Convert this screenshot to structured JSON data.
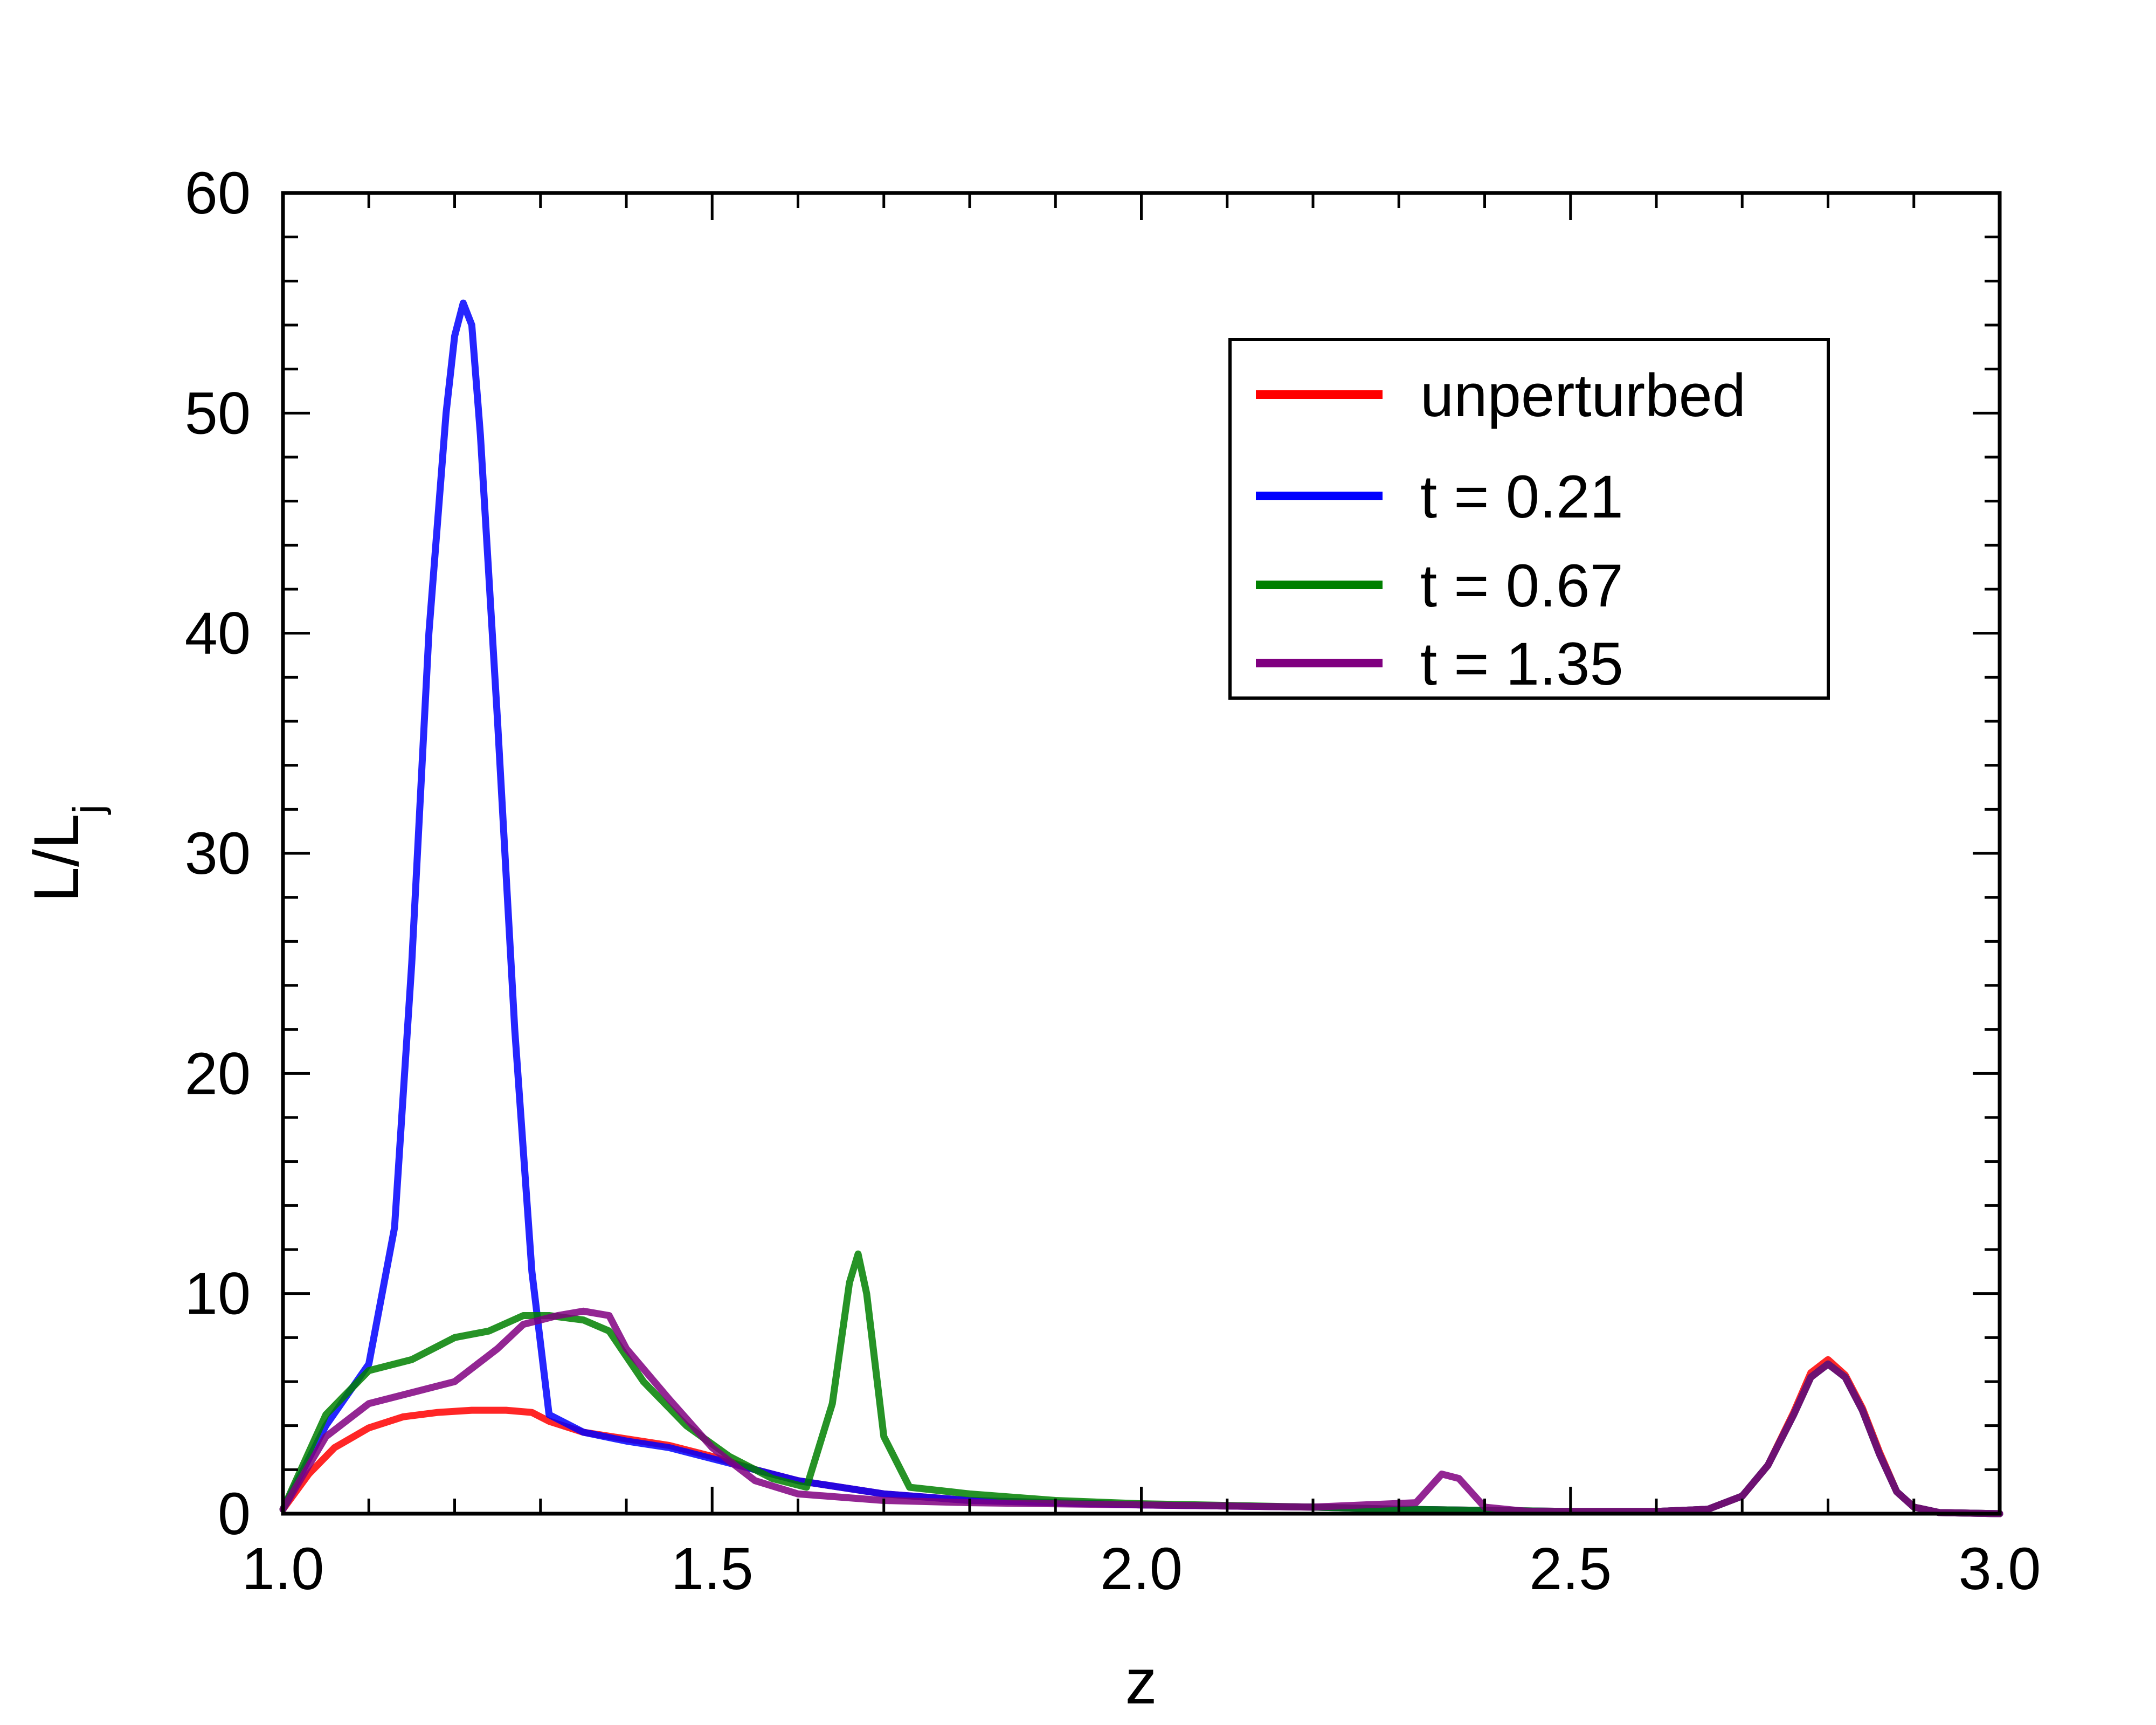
{
  "chart_data": {
    "type": "line",
    "title": "",
    "xlabel": "z",
    "ylabel": "L/L",
    "ylabel_subscript": "j",
    "xlim": [
      1.0,
      3.0
    ],
    "ylim": [
      0,
      60
    ],
    "xticks": [
      1.0,
      1.5,
      2.0,
      2.5,
      3.0
    ],
    "xtick_labels": [
      "1.0",
      "1.5",
      "2.0",
      "2.5",
      "3.0"
    ],
    "yticks": [
      0,
      10,
      20,
      30,
      40,
      50,
      60
    ],
    "ytick_labels": [
      "0",
      "10",
      "20",
      "30",
      "40",
      "50",
      "60"
    ],
    "grid": false,
    "legend_position": "top-right",
    "series": [
      {
        "name": "unperturbed",
        "color": "#ff0000",
        "x": [
          1.0,
          1.03,
          1.06,
          1.1,
          1.14,
          1.18,
          1.22,
          1.26,
          1.29,
          1.31,
          1.35,
          1.4,
          1.45,
          1.5,
          1.55,
          1.6,
          1.7,
          1.8,
          2.0,
          2.2,
          2.3,
          2.4,
          2.5,
          2.6,
          2.66,
          2.7,
          2.73,
          2.76,
          2.78,
          2.8,
          2.82,
          2.84,
          2.86,
          2.88,
          2.9,
          2.93,
          3.0
        ],
        "y": [
          0.2,
          1.8,
          3.0,
          3.9,
          4.4,
          4.6,
          4.7,
          4.7,
          4.6,
          4.2,
          3.7,
          3.4,
          3.1,
          2.6,
          2.0,
          1.5,
          0.9,
          0.6,
          0.4,
          0.3,
          0.2,
          0.15,
          0.1,
          0.1,
          0.2,
          0.8,
          2.2,
          4.6,
          6.4,
          7.0,
          6.3,
          4.8,
          2.8,
          1.0,
          0.3,
          0.05,
          0.0
        ]
      },
      {
        "name": "t = 0.21",
        "color": "#0000ff",
        "x": [
          1.0,
          1.05,
          1.1,
          1.13,
          1.15,
          1.17,
          1.19,
          1.2,
          1.21,
          1.22,
          1.23,
          1.25,
          1.27,
          1.29,
          1.31,
          1.35,
          1.4,
          1.45,
          1.5,
          1.55,
          1.6,
          1.7,
          1.8,
          2.0,
          2.2,
          2.3,
          2.4,
          2.5,
          2.6,
          2.66,
          2.7,
          2.73,
          2.76,
          2.78,
          2.8,
          2.82,
          2.84,
          2.86,
          2.88,
          2.9,
          2.93,
          3.0
        ],
        "y": [
          0.2,
          4.0,
          6.8,
          13,
          25,
          40,
          50,
          53.5,
          55,
          54,
          49,
          36,
          22,
          11,
          4.5,
          3.7,
          3.3,
          3.0,
          2.5,
          2.0,
          1.5,
          0.9,
          0.6,
          0.4,
          0.3,
          0.2,
          0.15,
          0.1,
          0.1,
          0.2,
          0.8,
          2.2,
          4.5,
          6.2,
          6.8,
          6.2,
          4.7,
          2.7,
          1.0,
          0.3,
          0.05,
          0.0
        ]
      },
      {
        "name": "t = 0.67",
        "color": "#008000",
        "x": [
          1.0,
          1.05,
          1.1,
          1.15,
          1.2,
          1.24,
          1.28,
          1.31,
          1.35,
          1.38,
          1.42,
          1.47,
          1.52,
          1.57,
          1.61,
          1.64,
          1.66,
          1.67,
          1.68,
          1.7,
          1.73,
          1.8,
          1.9,
          2.0,
          2.2,
          2.3,
          2.4,
          2.5,
          2.6,
          2.66,
          2.7,
          2.73,
          2.76,
          2.78,
          2.8,
          2.82,
          2.84,
          2.86,
          2.88,
          2.9,
          2.93,
          3.0
        ],
        "y": [
          0.2,
          4.5,
          6.5,
          7.0,
          8.0,
          8.3,
          9.0,
          9.0,
          8.8,
          8.3,
          6.0,
          4.0,
          2.6,
          1.6,
          1.2,
          5.0,
          10.5,
          11.8,
          10.0,
          3.5,
          1.2,
          0.9,
          0.6,
          0.45,
          0.3,
          0.2,
          0.15,
          0.1,
          0.1,
          0.2,
          0.8,
          2.2,
          4.5,
          6.2,
          6.8,
          6.2,
          4.7,
          2.7,
          1.0,
          0.3,
          0.05,
          0.0
        ]
      },
      {
        "name": "t = 1.35",
        "color": "#800080",
        "x": [
          1.0,
          1.05,
          1.1,
          1.15,
          1.2,
          1.25,
          1.28,
          1.32,
          1.35,
          1.38,
          1.4,
          1.45,
          1.5,
          1.55,
          1.6,
          1.7,
          1.8,
          2.0,
          2.2,
          2.32,
          2.35,
          2.37,
          2.4,
          2.45,
          2.5,
          2.6,
          2.66,
          2.7,
          2.73,
          2.76,
          2.78,
          2.8,
          2.82,
          2.84,
          2.86,
          2.88,
          2.9,
          2.93,
          3.0
        ],
        "y": [
          0.2,
          3.5,
          5.0,
          5.5,
          6.0,
          7.5,
          8.6,
          9.0,
          9.2,
          9.0,
          7.5,
          5.2,
          3.0,
          1.5,
          0.9,
          0.6,
          0.5,
          0.4,
          0.3,
          0.5,
          1.8,
          1.6,
          0.3,
          0.1,
          0.1,
          0.1,
          0.2,
          0.8,
          2.2,
          4.5,
          6.2,
          6.8,
          6.2,
          4.7,
          2.7,
          1.0,
          0.3,
          0.05,
          0.0
        ]
      }
    ]
  }
}
